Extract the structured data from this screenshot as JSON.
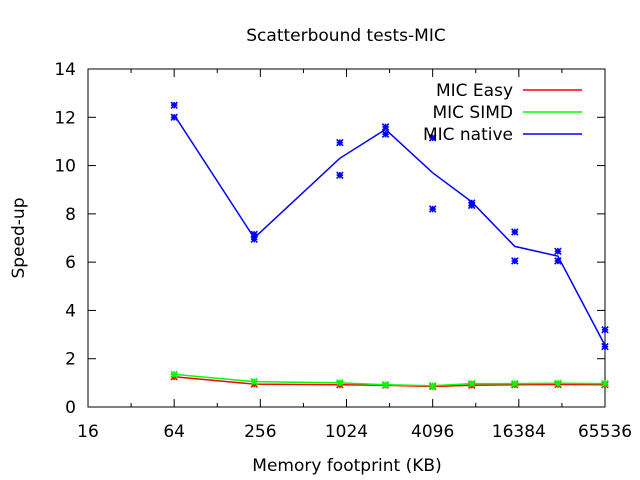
{
  "chart_data": {
    "type": "line",
    "title": "Scatterbound tests-MIC",
    "xlabel": "Memory footprint (KB)",
    "ylabel": "Speed-up",
    "xscale": "log2",
    "xlim": [
      16,
      65536
    ],
    "ylim": [
      0,
      14
    ],
    "x_ticks": [
      "16",
      "64",
      "256",
      "1024",
      "4096",
      "16384",
      "65536"
    ],
    "x_tick_values": [
      16,
      64,
      256,
      1024,
      4096,
      16384,
      65536
    ],
    "y_ticks": [
      "0",
      "2",
      "4",
      "6",
      "8",
      "10",
      "12",
      "14"
    ],
    "y_tick_values": [
      0,
      2,
      4,
      6,
      8,
      10,
      12,
      14
    ],
    "grid": false,
    "legend_position": "top-right",
    "series": [
      {
        "name": "MIC Easy",
        "color": "#ff0000",
        "x": [
          64,
          232,
          920,
          1920,
          4096,
          7680,
          15360,
          30720,
          65536
        ],
        "values": [
          1.25,
          0.95,
          0.92,
          0.9,
          0.85,
          0.9,
          0.92,
          0.93,
          0.92
        ]
      },
      {
        "name": "MIC SIMD",
        "color": "#00ff00",
        "x": [
          64,
          232,
          920,
          1920,
          4096,
          7680,
          15360,
          30720,
          65536
        ],
        "values": [
          1.35,
          1.05,
          1.0,
          0.92,
          0.88,
          0.97,
          0.97,
          0.98,
          0.97
        ]
      },
      {
        "name": "MIC native",
        "color": "#0000ff",
        "x": [
          64,
          232,
          920,
          1920,
          4096,
          7680,
          15360,
          30720,
          65536
        ],
        "values": [
          12.1,
          7.0,
          10.3,
          11.5,
          9.7,
          8.5,
          6.65,
          6.25,
          2.55
        ],
        "points": [
          [
            64,
            12.5
          ],
          [
            64,
            12.0
          ],
          [
            232,
            7.15
          ],
          [
            232,
            6.95
          ],
          [
            920,
            10.95
          ],
          [
            920,
            9.6
          ],
          [
            1920,
            11.6
          ],
          [
            1920,
            11.3
          ],
          [
            4096,
            11.15
          ],
          [
            4096,
            8.2
          ],
          [
            7680,
            8.45
          ],
          [
            7680,
            8.35
          ],
          [
            15360,
            7.25
          ],
          [
            15360,
            6.05
          ],
          [
            30720,
            6.45
          ],
          [
            30720,
            6.05
          ],
          [
            65536,
            3.2
          ],
          [
            65536,
            2.5
          ]
        ]
      }
    ]
  }
}
